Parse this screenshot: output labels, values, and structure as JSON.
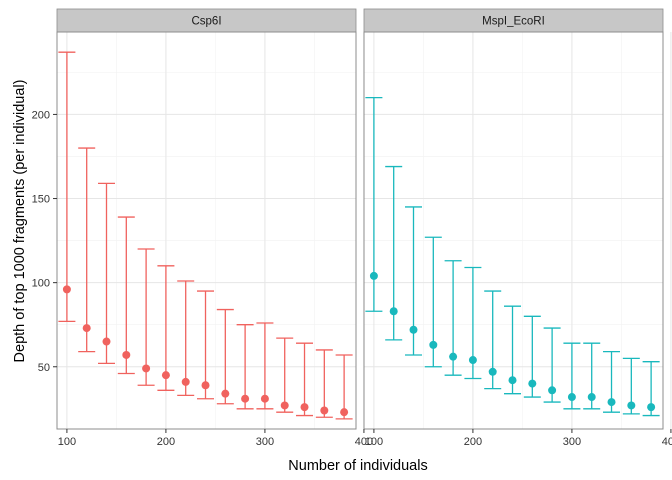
{
  "chart_data": {
    "type": "errorbar-faceted",
    "xlabel": "Number of individuals",
    "ylabel": "Depth of top 1000 fragments (per individual)",
    "xlim": [
      90,
      392
    ],
    "ylim": [
      13,
      249
    ],
    "xticks": [
      100,
      200,
      300,
      400
    ],
    "yticks": [
      50,
      100,
      150,
      200
    ],
    "grid": true,
    "legend": "none",
    "facets": [
      {
        "name": "Csp6I",
        "color": "#F0625E",
        "x": [
          100,
          120,
          140,
          160,
          180,
          200,
          220,
          240,
          260,
          280,
          300,
          320,
          340,
          360,
          380
        ],
        "mean": [
          96,
          73,
          65,
          57,
          49,
          45,
          41,
          39,
          34,
          31,
          31,
          27,
          26,
          24,
          23
        ],
        "lower": [
          77,
          59,
          52,
          46,
          39,
          36,
          33,
          31,
          28,
          25,
          25,
          23,
          21,
          20,
          19
        ],
        "upper": [
          237,
          180,
          159,
          139,
          120,
          110,
          101,
          95,
          84,
          75,
          76,
          67,
          64,
          60,
          57
        ]
      },
      {
        "name": "MspI_EcoRI",
        "color": "#19B8BD",
        "x": [
          100,
          120,
          140,
          160,
          180,
          200,
          220,
          240,
          260,
          280,
          300,
          320,
          340,
          360,
          380
        ],
        "mean": [
          104,
          83,
          72,
          63,
          56,
          54,
          47,
          42,
          40,
          36,
          32,
          32,
          29,
          27,
          26
        ],
        "lower": [
          83,
          66,
          57,
          50,
          45,
          43,
          37,
          34,
          32,
          29,
          25,
          25,
          23,
          22,
          21
        ],
        "upper": [
          210,
          169,
          145,
          127,
          113,
          109,
          95,
          86,
          80,
          73,
          64,
          64,
          59,
          55,
          53
        ]
      }
    ]
  }
}
